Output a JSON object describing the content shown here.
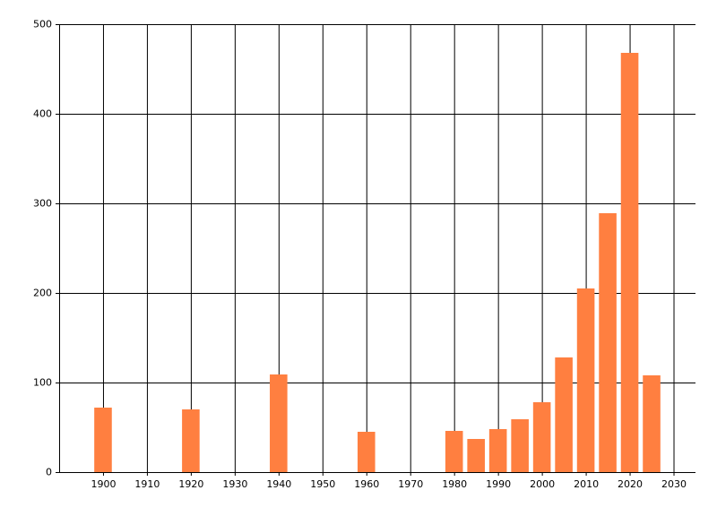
{
  "chart_data": {
    "type": "bar",
    "x": [
      1900,
      1920,
      1940,
      1960,
      1980,
      1985,
      1990,
      1995,
      2000,
      2005,
      2010,
      2015,
      2020,
      2025
    ],
    "values": [
      72,
      70,
      109,
      45,
      46,
      37,
      48,
      59,
      78,
      128,
      205,
      289,
      468,
      108
    ],
    "color": "#ff7f40",
    "xlim": [
      1890,
      2035
    ],
    "xticks": [
      1900,
      1910,
      1920,
      1930,
      1940,
      1950,
      1960,
      1970,
      1980,
      1990,
      2000,
      2010,
      2020,
      2030
    ],
    "ylim": [
      0,
      500
    ],
    "yticks": [
      0,
      100,
      200,
      300,
      400,
      500
    ],
    "grid": true
  }
}
